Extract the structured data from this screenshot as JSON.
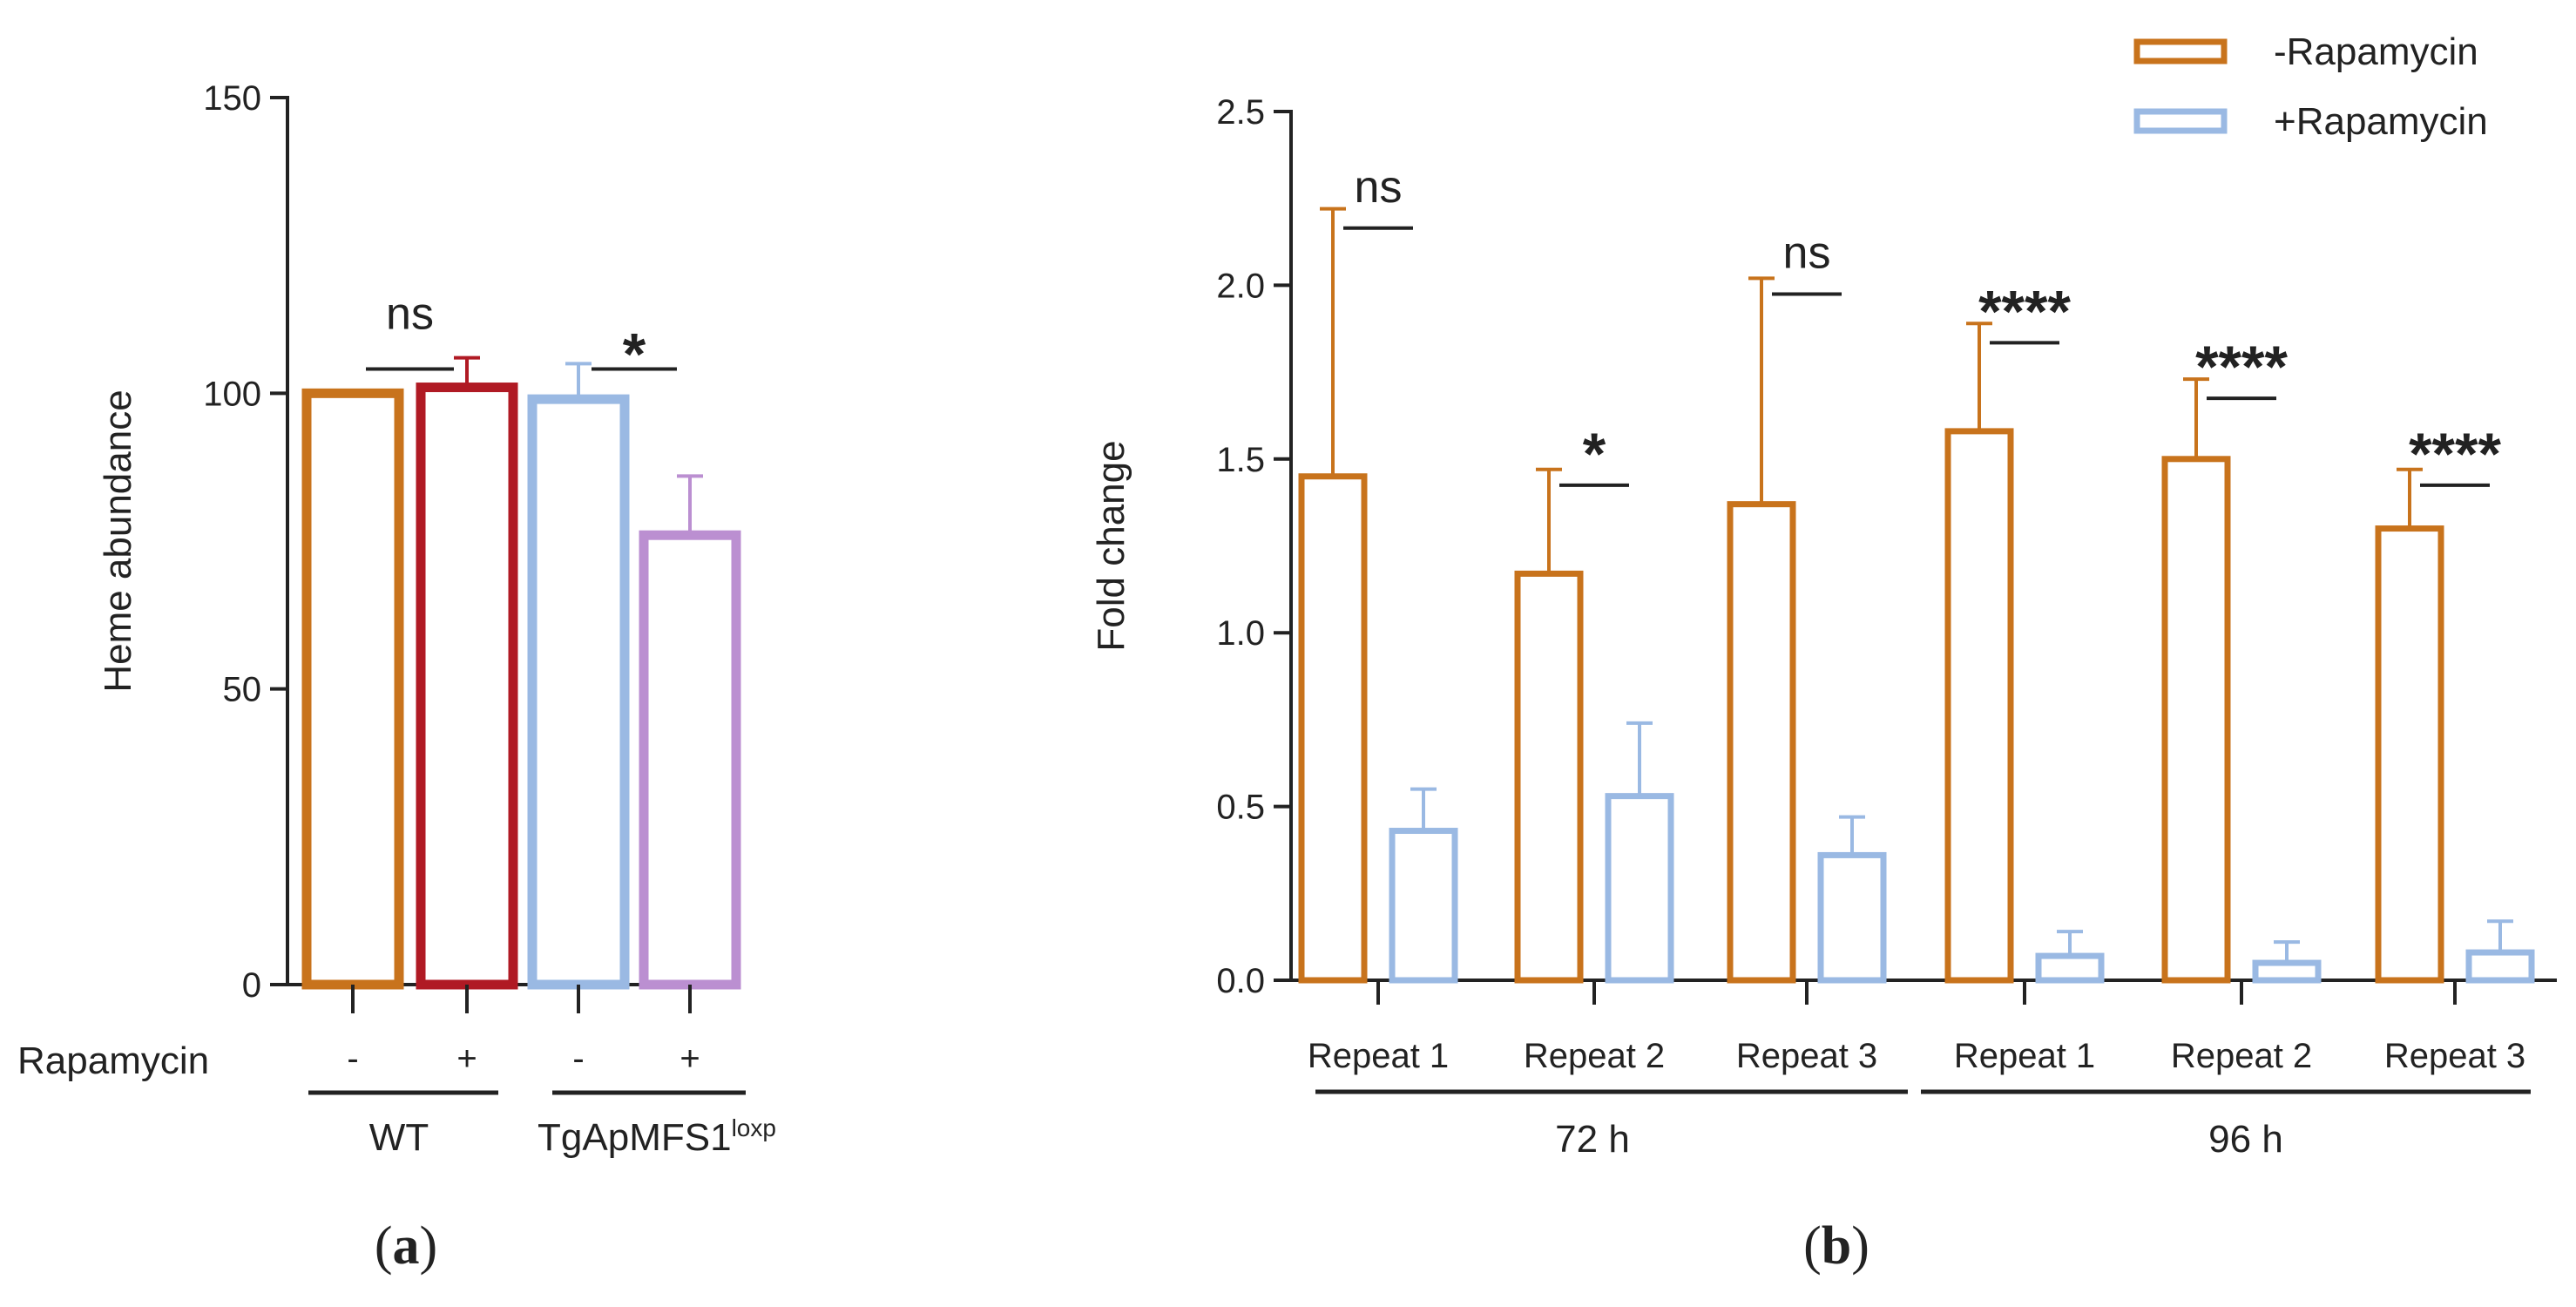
{
  "colors": {
    "minus": "#c8731c",
    "plus": "#9ab9e3",
    "wt_plus": "#b01a24",
    "tg_plus": "#bb8fd1",
    "axis": "#222222"
  },
  "chart_data": [
    {
      "id": "a",
      "panel_label_open": "(",
      "panel_letter": "a",
      "panel_label_close": ")",
      "type": "bar",
      "ylabel": "Heme abundance",
      "ylim": [
        0,
        150
      ],
      "yticks": [
        0,
        50,
        100,
        150
      ],
      "row_label": "Rapamycin",
      "categories": [
        "WT -",
        "WT +",
        "TgApMFS1loxp -",
        "TgApMFS1loxp +"
      ],
      "rapamycin": [
        "-",
        "+",
        "-",
        "+"
      ],
      "values": [
        100,
        101,
        99,
        76
      ],
      "errors": [
        0,
        5,
        6,
        10
      ],
      "color_keys": [
        "minus",
        "wt_plus",
        "plus",
        "tg_plus"
      ],
      "groups": [
        {
          "name": "WT",
          "sup": ""
        },
        {
          "name": "TgApMFS1",
          "sup": "loxp"
        }
      ],
      "comparisons": [
        {
          "from": 0,
          "to": 1,
          "label": "ns",
          "y": 110
        },
        {
          "from": 2,
          "to": 3,
          "label": "*",
          "y": 110
        }
      ]
    },
    {
      "id": "b",
      "panel_label_open": "(",
      "panel_letter": "b",
      "panel_label_close": ")",
      "type": "bar",
      "ylabel": "Fold change",
      "ylim": [
        0,
        2.5
      ],
      "yticks": [
        "0.0",
        "0.5",
        "1.0",
        "1.5",
        "2.0",
        "2.5"
      ],
      "categories": [
        "Repeat 1",
        "Repeat 2",
        "Repeat 3",
        "Repeat 1",
        "Repeat 2",
        "Repeat 3"
      ],
      "groups": [
        {
          "name": "72 h"
        },
        {
          "name": "96 h"
        }
      ],
      "series": [
        {
          "name": "-Rapamycin",
          "color_key": "minus",
          "values": [
            1.45,
            1.17,
            1.37,
            1.58,
            1.5,
            1.3
          ],
          "errors": [
            0.77,
            0.3,
            0.65,
            0.31,
            0.23,
            0.17
          ]
        },
        {
          "name": "+Rapamycin",
          "color_key": "plus",
          "values": [
            0.43,
            0.53,
            0.36,
            0.07,
            0.05,
            0.08
          ],
          "errors": [
            0.12,
            0.21,
            0.11,
            0.07,
            0.06,
            0.09
          ]
        }
      ],
      "comparisons": [
        {
          "label": "ns",
          "y": 2.31
        },
        {
          "label": "*",
          "y": 1.57
        },
        {
          "label": "ns",
          "y": 2.12
        },
        {
          "label": "****",
          "y": 1.98
        },
        {
          "label": "****",
          "y": 1.82
        },
        {
          "label": "****",
          "y": 1.57
        }
      ]
    }
  ]
}
